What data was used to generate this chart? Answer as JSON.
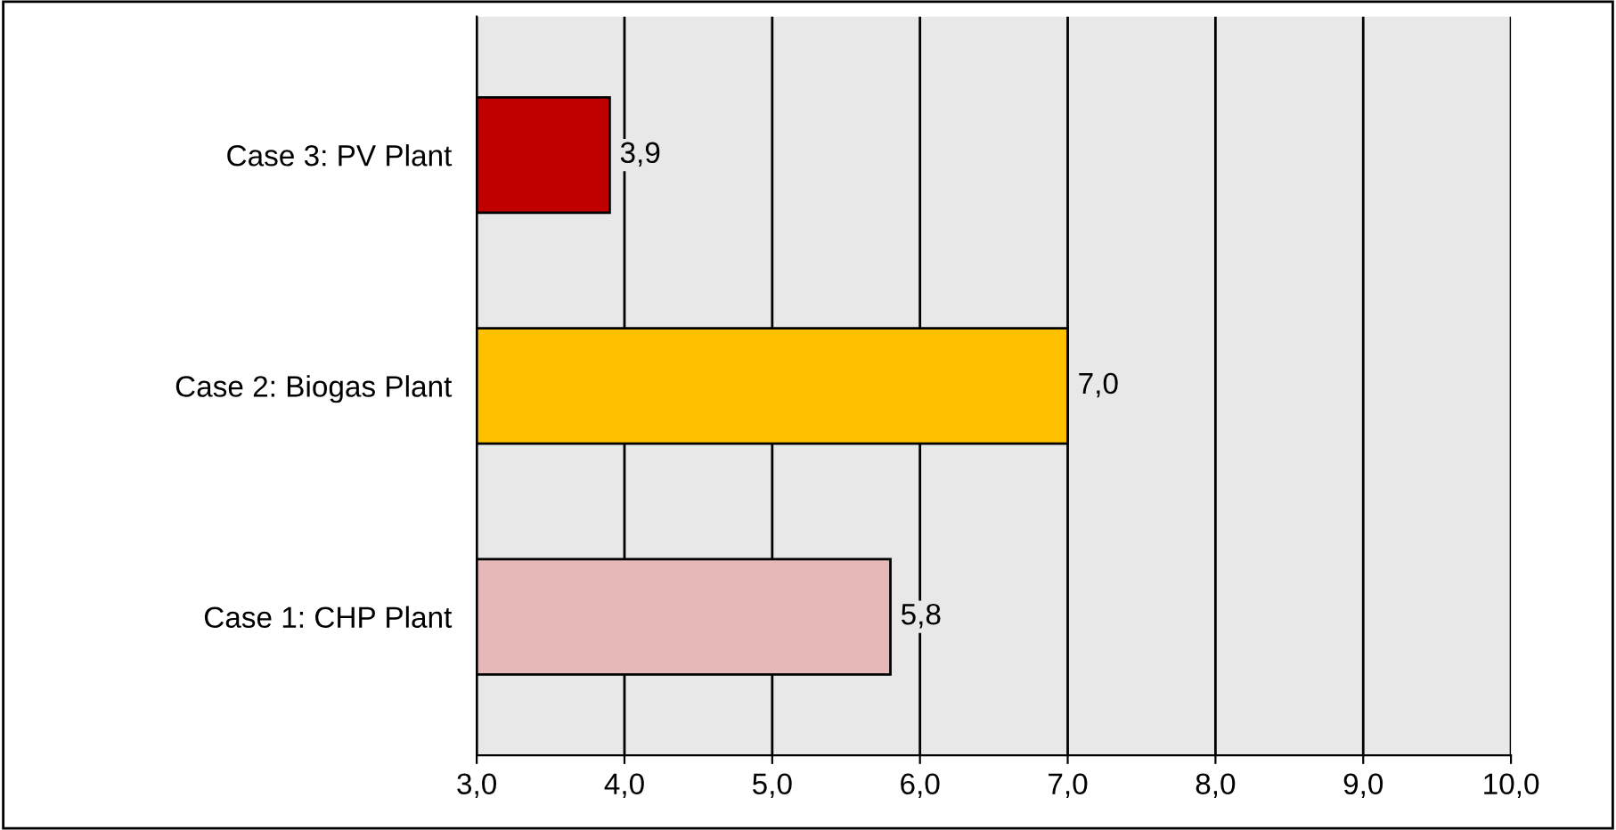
{
  "chart_data": {
    "type": "bar",
    "orientation": "horizontal",
    "categories": [
      "Case 3: PV Plant",
      "Case 2: Biogas Plant",
      "Case 1: CHP Plant"
    ],
    "values": [
      3.9,
      7.0,
      5.8
    ],
    "colors": [
      "#c00000",
      "#ffc000",
      "#e6b8b7"
    ],
    "value_labels": [
      "3,9",
      "7,0",
      "5,8"
    ],
    "xlim": [
      3,
      10
    ],
    "xticks": [
      {
        "value": 3,
        "label": "3,0"
      },
      {
        "value": 4,
        "label": "4,0"
      },
      {
        "value": 5,
        "label": "5,0"
      },
      {
        "value": 6,
        "label": "6,0"
      },
      {
        "value": 7,
        "label": "7,0"
      },
      {
        "value": 8,
        "label": "8,0"
      },
      {
        "value": 9,
        "label": "9,0"
      },
      {
        "value": 10,
        "label": "10,0"
      }
    ],
    "grid": "x"
  }
}
